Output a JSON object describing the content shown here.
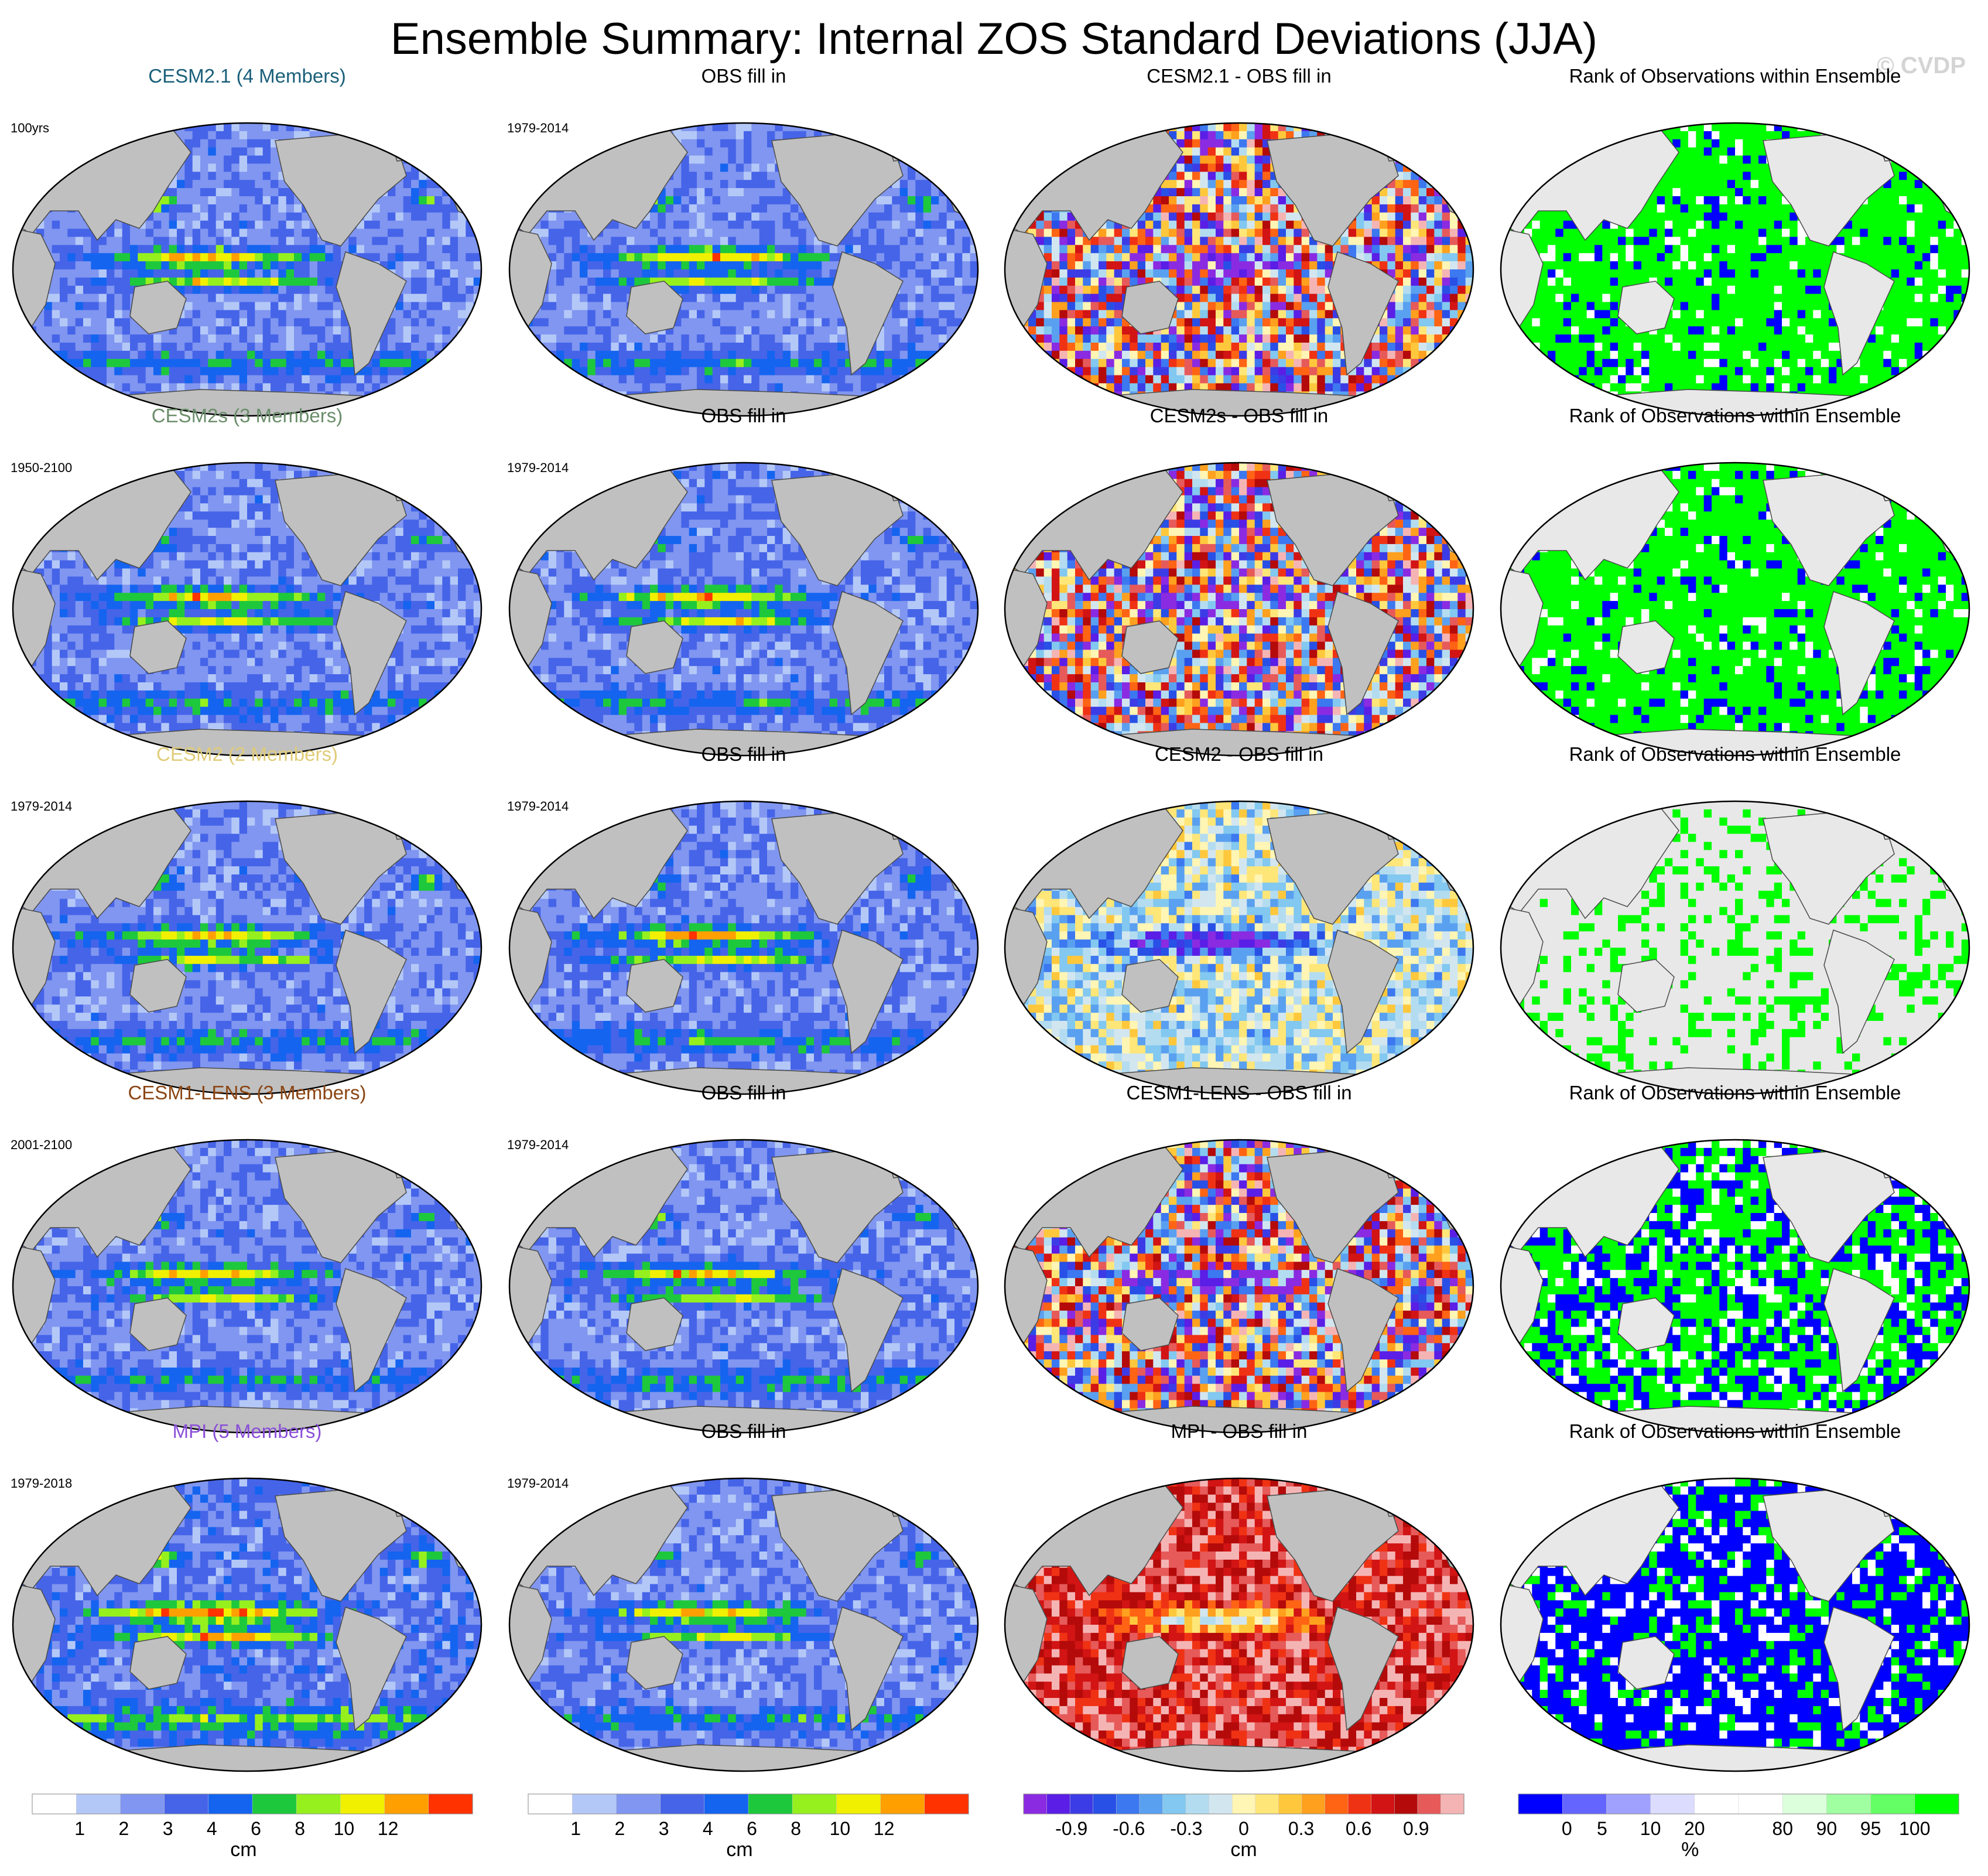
{
  "title": "Ensemble Summary: Internal ZOS Standard Deviations (JJA)",
  "watermark": "© CVDP",
  "column_titles": {
    "obs": "OBS fill in",
    "rank": "Rank of Observations within Ensemble"
  },
  "rows": [
    {
      "model_title": "CESM2.1 (4 Members)",
      "title_color": "#1a5f7a",
      "model_years": "100yrs",
      "obs_years": "1979-2014",
      "diff_title": "CESM2.1 - OBS fill in",
      "diff_pattern": "mixed",
      "rank_pattern": "green"
    },
    {
      "model_title": "CESM2s (3 Members)",
      "title_color": "#6b8e6b",
      "model_years": "1950-2100",
      "obs_years": "1979-2014",
      "diff_title": "CESM2s - OBS fill in",
      "diff_pattern": "mixed",
      "rank_pattern": "green"
    },
    {
      "model_title": "CESM2 (2 Members)",
      "title_color": "#e0cc78",
      "model_years": "1979-2014",
      "obs_years": "1979-2014",
      "diff_title": "CESM2 - OBS fill in",
      "diff_pattern": "negative",
      "rank_pattern": "sparse"
    },
    {
      "model_title": "CESM1-LENS (3 Members)",
      "title_color": "#8b4513",
      "model_years": "2001-2100",
      "obs_years": "1979-2014",
      "diff_title": "CESM1-LENS - OBS fill in",
      "diff_pattern": "mixed",
      "rank_pattern": "blue-green"
    },
    {
      "model_title": "MPI (5 Members)",
      "title_color": "#8a4fd8",
      "model_years": "1979-2018",
      "obs_years": "1979-2014",
      "diff_title": "MPI - OBS fill in",
      "diff_pattern": "positive",
      "rank_pattern": "blue"
    }
  ],
  "colorbars": {
    "std": {
      "colors": [
        "#ffffff",
        "#b4c8f8",
        "#8096f0",
        "#4664e8",
        "#1464f0",
        "#1ec83c",
        "#96f01e",
        "#f0f000",
        "#ffa000",
        "#ff3200"
      ],
      "tick_labels": [
        "1",
        "2",
        "3",
        "4",
        "6",
        "8",
        "10",
        "12"
      ],
      "unit": "cm"
    },
    "diff": {
      "colors": [
        "#8a2be2",
        "#5a1ee6",
        "#3c3ce6",
        "#2850e6",
        "#3c78f0",
        "#5aa0f0",
        "#82c8f0",
        "#b4dcf0",
        "#d2e6f0",
        "#fff5b4",
        "#ffe678",
        "#ffc83c",
        "#ffa01e",
        "#ff6414",
        "#f03214",
        "#d21414",
        "#b40a0a",
        "#e65a5a",
        "#f5b4b4"
      ],
      "tick_labels": [
        "-0.9",
        "-0.6",
        "-0.3",
        "0",
        "0.3",
        "0.6",
        "0.9"
      ],
      "unit": "cm"
    },
    "rank": {
      "colors": [
        "#0000ff",
        "#6464ff",
        "#a0a0ff",
        "#dcdcff",
        "#ffffff",
        "#ffffff",
        "#dcffdc",
        "#a0ffa0",
        "#64ff64",
        "#00ff00"
      ],
      "tick_labels": [
        "0",
        "5",
        "10",
        "20",
        "80",
        "90",
        "95",
        "100"
      ],
      "unit": "%"
    }
  },
  "colors": {
    "land": "#c0c0c0",
    "land_light": "#e8e8e8",
    "coast": "#4a4a4a"
  }
}
